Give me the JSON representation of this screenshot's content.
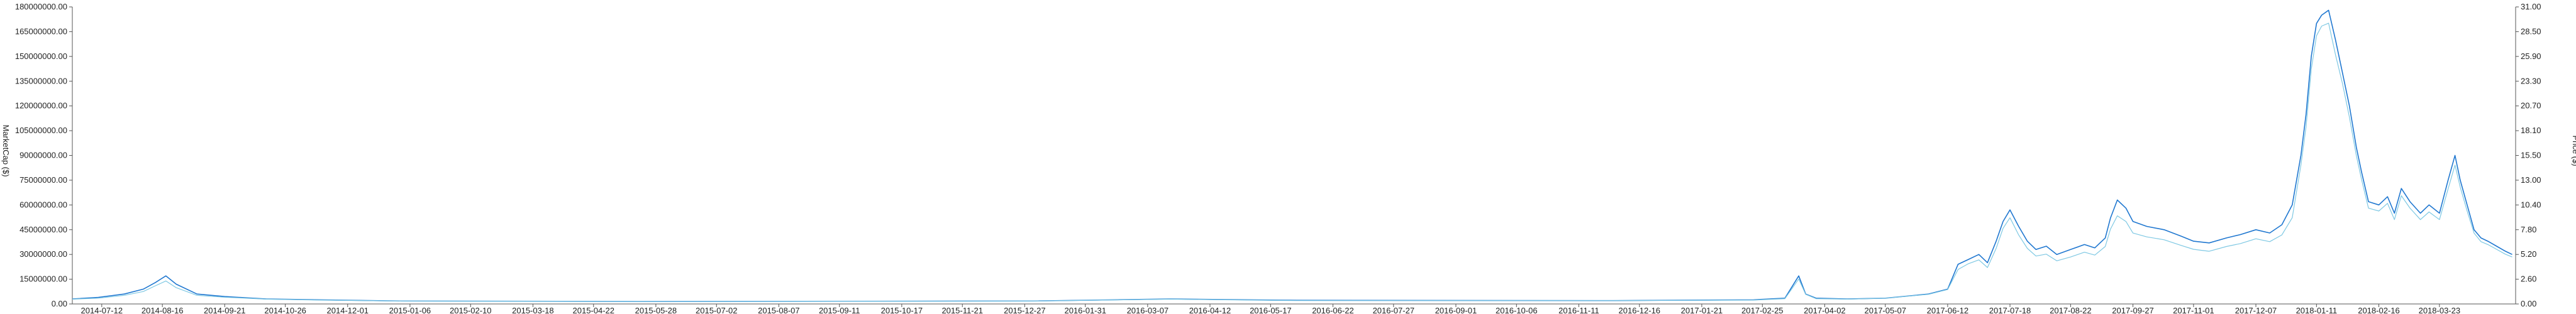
{
  "chart_data": {
    "type": "line",
    "title": "",
    "y_left_label": "MarketCap ($)",
    "y_right_label": "Price ($)",
    "y_left_ticks": [
      "0.00",
      "15000000.00",
      "30000000.00",
      "45000000.00",
      "60000000.00",
      "75000000.00",
      "90000000.00",
      "105000000.00",
      "120000000.00",
      "135000000.00",
      "150000000.00",
      "165000000.00",
      "180000000.00"
    ],
    "y_right_ticks": [
      "0.00",
      "2.60",
      "5.20",
      "7.80",
      "10.40",
      "13.00",
      "15.50",
      "18.10",
      "20.70",
      "23.30",
      "25.90",
      "28.50",
      "31.00"
    ],
    "x_ticks": [
      "2014-07-12",
      "2014-08-16",
      "2014-09-21",
      "2014-10-26",
      "2014-12-01",
      "2015-01-06",
      "2015-02-10",
      "2015-03-18",
      "2015-04-22",
      "2015-05-28",
      "2015-07-02",
      "2015-08-07",
      "2015-09-11",
      "2015-10-17",
      "2015-11-21",
      "2015-12-27",
      "2016-01-31",
      "2016-03-07",
      "2016-04-12",
      "2016-05-17",
      "2016-06-22",
      "2016-07-27",
      "2016-09-01",
      "2016-10-06",
      "2016-11-11",
      "2016-12-16",
      "2017-01-21",
      "2017-02-25",
      "2017-04-02",
      "2017-05-07",
      "2017-06-12",
      "2017-07-18",
      "2017-08-22",
      "2017-09-27",
      "2017-11-01",
      "2017-12-07",
      "2018-01-11",
      "2018-02-16",
      "2018-03-23"
    ],
    "ylim_left": [
      0,
      180000000
    ],
    "ylim_right": [
      0,
      31
    ],
    "grid": false,
    "colors": {
      "marketcap": "#1f77d0",
      "price": "#7ec8e3",
      "axis": "#555555"
    },
    "series": [
      {
        "key": "marketcap",
        "x": [
          "2014-06-25",
          "2014-07-10",
          "2014-07-25",
          "2014-08-05",
          "2014-08-12",
          "2014-08-18",
          "2014-08-24",
          "2014-09-05",
          "2014-09-21",
          "2014-10-15",
          "2014-11-15",
          "2015-01-01",
          "2015-06-01",
          "2016-01-01",
          "2016-03-20",
          "2016-06-01",
          "2016-12-01",
          "2017-02-20",
          "2017-03-10",
          "2017-03-18",
          "2017-03-22",
          "2017-03-28",
          "2017-04-15",
          "2017-05-07",
          "2017-06-01",
          "2017-06-12",
          "2017-06-18",
          "2017-06-24",
          "2017-06-30",
          "2017-07-05",
          "2017-07-10",
          "2017-07-14",
          "2017-07-18",
          "2017-07-23",
          "2017-07-28",
          "2017-08-02",
          "2017-08-08",
          "2017-08-14",
          "2017-08-22",
          "2017-08-30",
          "2017-09-05",
          "2017-09-11",
          "2017-09-14",
          "2017-09-18",
          "2017-09-23",
          "2017-09-27",
          "2017-10-05",
          "2017-10-15",
          "2017-10-25",
          "2017-11-01",
          "2017-11-10",
          "2017-11-20",
          "2017-11-28",
          "2017-12-07",
          "2017-12-15",
          "2017-12-22",
          "2017-12-28",
          "2018-01-02",
          "2018-01-05",
          "2018-01-08",
          "2018-01-11",
          "2018-01-14",
          "2018-01-18",
          "2018-01-22",
          "2018-01-26",
          "2018-01-30",
          "2018-02-03",
          "2018-02-06",
          "2018-02-10",
          "2018-02-16",
          "2018-02-21",
          "2018-02-25",
          "2018-03-01",
          "2018-03-06",
          "2018-03-12",
          "2018-03-17",
          "2018-03-23",
          "2018-03-28",
          "2018-04-01",
          "2018-04-04",
          "2018-04-08",
          "2018-04-12",
          "2018-04-16",
          "2018-04-20",
          "2018-04-25",
          "2018-04-30",
          "2018-05-04"
        ],
        "values": [
          3000000,
          4000000,
          6000000,
          9000000,
          13000000,
          17000000,
          12000000,
          6000000,
          4500000,
          3000000,
          2500000,
          1800000,
          1500000,
          1800000,
          3000000,
          2200000,
          2000000,
          2500000,
          3500000,
          17000000,
          6000000,
          3500000,
          3000000,
          3500000,
          6000000,
          9000000,
          24000000,
          27000000,
          30000000,
          25000000,
          38000000,
          50000000,
          57000000,
          47000000,
          38000000,
          33000000,
          35000000,
          30000000,
          33000000,
          36000000,
          34000000,
          40000000,
          52000000,
          63000000,
          58000000,
          50000000,
          47000000,
          45000000,
          41000000,
          38000000,
          37000000,
          40000000,
          42000000,
          45000000,
          43000000,
          48000000,
          60000000,
          90000000,
          115000000,
          150000000,
          170000000,
          175000000,
          178000000,
          160000000,
          140000000,
          120000000,
          95000000,
          80000000,
          62000000,
          60000000,
          65000000,
          55000000,
          70000000,
          62000000,
          55000000,
          60000000,
          55000000,
          75000000,
          90000000,
          75000000,
          60000000,
          45000000,
          40000000,
          38000000,
          35000000,
          32000000,
          30000000
        ]
      },
      {
        "key": "price",
        "x": [
          "2014-06-25",
          "2014-07-10",
          "2014-07-25",
          "2014-08-05",
          "2014-08-12",
          "2014-08-18",
          "2014-08-24",
          "2014-09-05",
          "2014-09-21",
          "2014-10-15",
          "2014-11-15",
          "2015-01-01",
          "2015-06-01",
          "2016-01-01",
          "2016-03-20",
          "2016-06-01",
          "2016-12-01",
          "2017-02-20",
          "2017-03-10",
          "2017-03-18",
          "2017-03-22",
          "2017-03-28",
          "2017-04-15",
          "2017-05-07",
          "2017-06-01",
          "2017-06-12",
          "2017-06-18",
          "2017-06-24",
          "2017-06-30",
          "2017-07-05",
          "2017-07-10",
          "2017-07-14",
          "2017-07-18",
          "2017-07-23",
          "2017-07-28",
          "2017-08-02",
          "2017-08-08",
          "2017-08-14",
          "2017-08-22",
          "2017-08-30",
          "2017-09-05",
          "2017-09-11",
          "2017-09-14",
          "2017-09-18",
          "2017-09-23",
          "2017-09-27",
          "2017-10-05",
          "2017-10-15",
          "2017-10-25",
          "2017-11-01",
          "2017-11-10",
          "2017-11-20",
          "2017-11-28",
          "2017-12-07",
          "2017-12-15",
          "2017-12-22",
          "2017-12-28",
          "2018-01-02",
          "2018-01-05",
          "2018-01-08",
          "2018-01-11",
          "2018-01-14",
          "2018-01-18",
          "2018-01-22",
          "2018-01-26",
          "2018-01-30",
          "2018-02-03",
          "2018-02-06",
          "2018-02-10",
          "2018-02-16",
          "2018-02-21",
          "2018-02-25",
          "2018-03-01",
          "2018-03-06",
          "2018-03-12",
          "2018-03-17",
          "2018-03-23",
          "2018-03-28",
          "2018-04-01",
          "2018-04-04",
          "2018-04-08",
          "2018-04-12",
          "2018-04-16",
          "2018-04-20",
          "2018-04-25",
          "2018-04-30",
          "2018-05-04"
        ],
        "values": [
          0.5,
          0.6,
          0.9,
          1.3,
          1.9,
          2.4,
          1.7,
          0.9,
          0.7,
          0.5,
          0.4,
          0.3,
          0.25,
          0.3,
          0.5,
          0.35,
          0.35,
          0.4,
          0.55,
          2.6,
          1.0,
          0.55,
          0.5,
          0.6,
          1.0,
          1.5,
          3.6,
          4.2,
          4.6,
          3.8,
          5.8,
          7.9,
          9.0,
          7.2,
          5.8,
          5.0,
          5.2,
          4.5,
          4.9,
          5.4,
          5.1,
          6.0,
          7.8,
          9.2,
          8.6,
          7.4,
          7.0,
          6.7,
          6.1,
          5.7,
          5.5,
          6.0,
          6.3,
          6.8,
          6.5,
          7.2,
          9.0,
          14.5,
          18.5,
          24.5,
          28.0,
          29.0,
          29.3,
          26.0,
          23.0,
          19.5,
          15.5,
          13.0,
          10.0,
          9.7,
          10.5,
          8.8,
          11.3,
          10.0,
          8.8,
          9.6,
          8.8,
          12.0,
          14.5,
          12.2,
          9.7,
          7.4,
          6.5,
          6.2,
          5.7,
          5.2,
          4.9
        ]
      }
    ]
  }
}
